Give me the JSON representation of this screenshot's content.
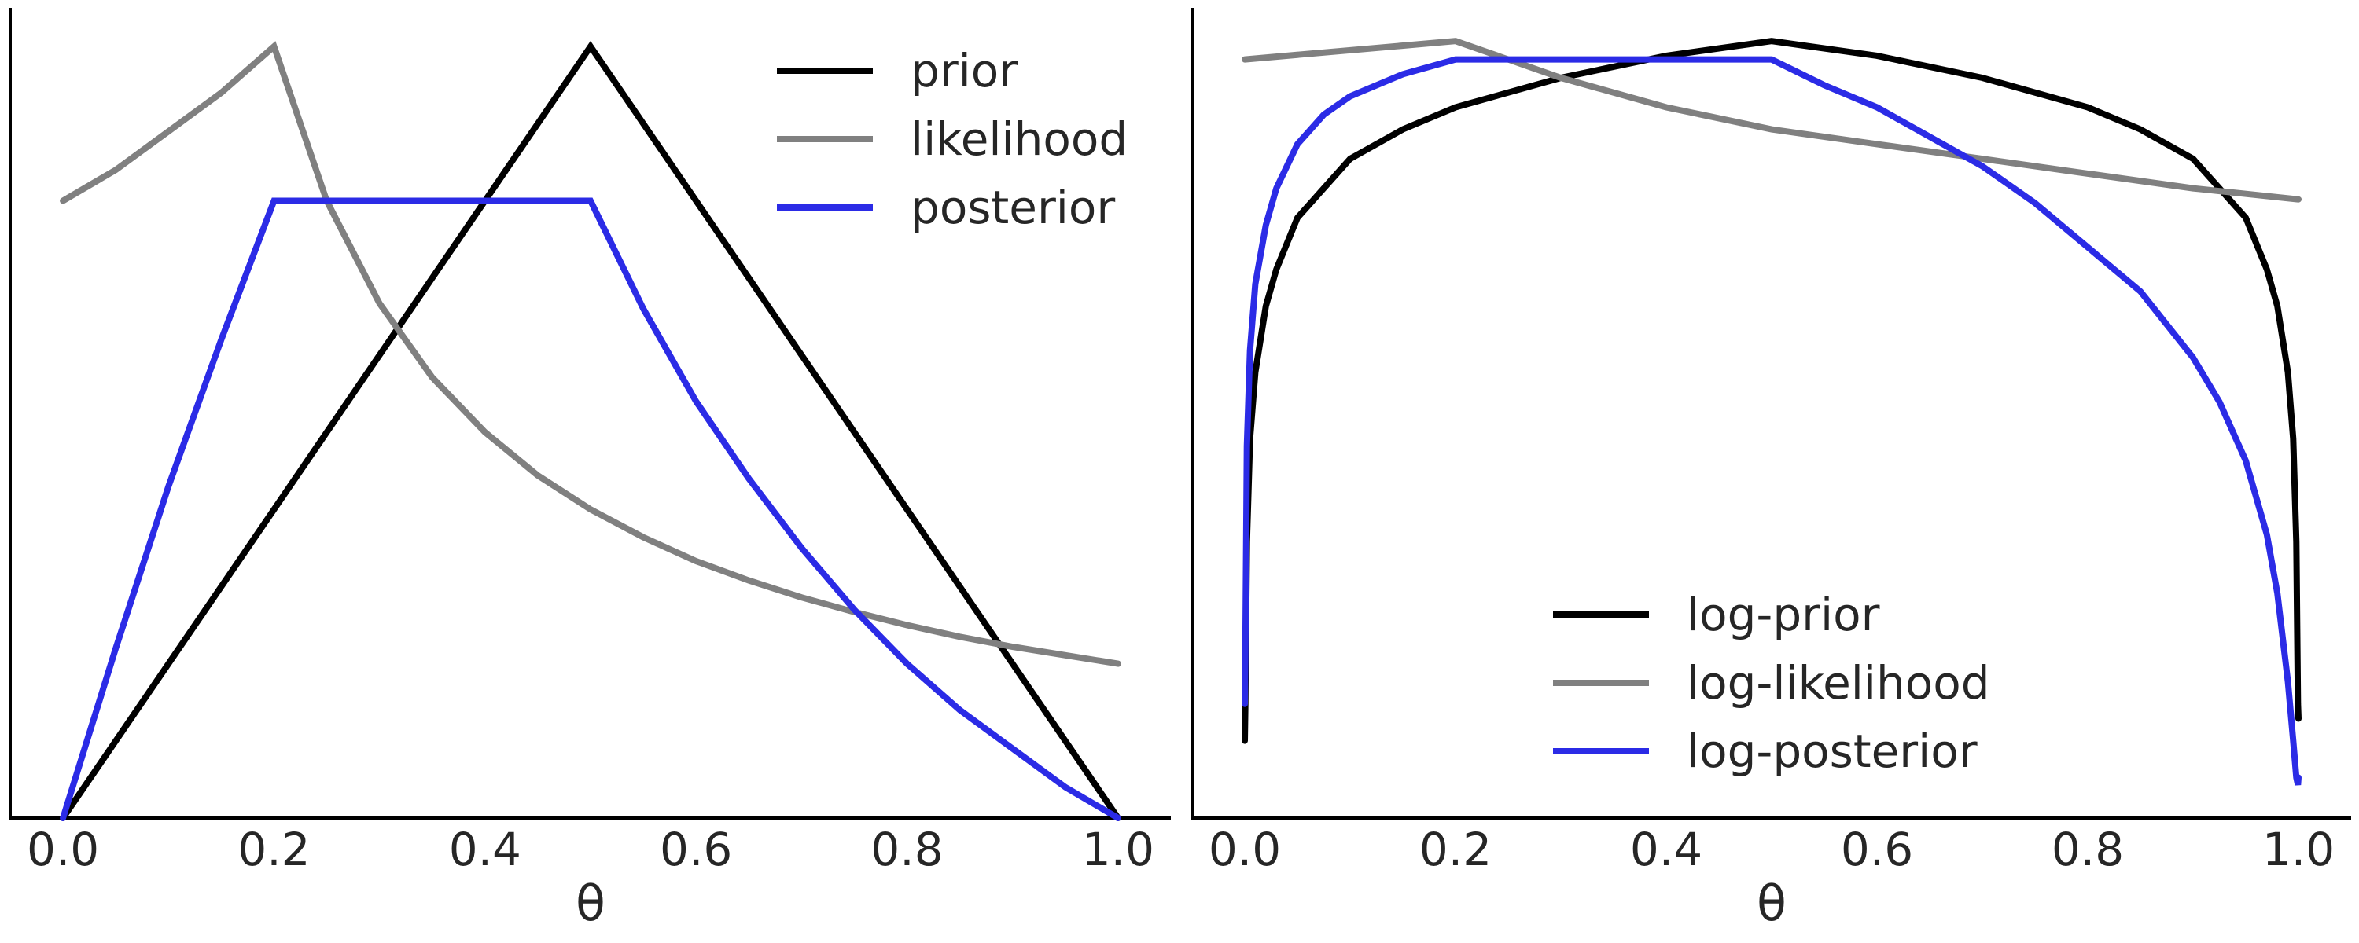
{
  "chart_data": [
    {
      "type": "line",
      "title": "",
      "xlabel": "θ",
      "ylabel": "",
      "xlim": [
        -0.05,
        1.05
      ],
      "ylim": [
        0.0,
        1.05
      ],
      "xticks": [
        "0.0",
        "0.2",
        "0.4",
        "0.6",
        "0.8",
        "1.0"
      ],
      "yticks": [],
      "grid": false,
      "legend_position": "top-right",
      "series": [
        {
          "name": "prior",
          "color": "#000000",
          "x": [
            0.0,
            0.5,
            1.0
          ],
          "y": [
            0.0,
            1.0,
            0.0
          ]
        },
        {
          "name": "likelihood",
          "color": "#808080",
          "x": [
            0.0,
            0.05,
            0.1,
            0.15,
            0.2,
            0.25,
            0.3,
            0.35,
            0.4,
            0.45,
            0.5,
            0.55,
            0.6,
            0.65,
            0.7,
            0.75,
            0.8,
            0.85,
            0.9,
            0.95,
            1.0
          ],
          "y": [
            0.8,
            0.84,
            0.89,
            0.94,
            1.0,
            0.8,
            0.667,
            0.571,
            0.5,
            0.444,
            0.4,
            0.364,
            0.333,
            0.308,
            0.286,
            0.267,
            0.25,
            0.235,
            0.222,
            0.211,
            0.2
          ]
        },
        {
          "name": "posterior",
          "color": "#2b2be6",
          "x": [
            0.0,
            0.05,
            0.1,
            0.15,
            0.2,
            0.5,
            0.55,
            0.6,
            0.65,
            0.7,
            0.75,
            0.8,
            0.85,
            0.9,
            0.95,
            1.0
          ],
          "y": [
            0.0,
            0.22,
            0.43,
            0.62,
            0.8,
            0.8,
            0.66,
            0.54,
            0.44,
            0.35,
            0.27,
            0.2,
            0.14,
            0.09,
            0.04,
            0.0
          ]
        }
      ]
    },
    {
      "type": "line",
      "title": "",
      "xlabel": "θ",
      "ylabel": "",
      "xlim": [
        -0.05,
        1.05
      ],
      "ylim": [
        -0.055,
        1.045
      ],
      "xticks": [
        "0.0",
        "0.2",
        "0.4",
        "0.6",
        "0.8",
        "1.0"
      ],
      "yticks": [],
      "grid": false,
      "legend_position": "bottom-center",
      "series": [
        {
          "name": "log-prior",
          "color": "#000000",
          "x": [
            0.0,
            0.0005,
            0.002,
            0.005,
            0.01,
            0.02,
            0.03,
            0.05,
            0.075,
            0.1,
            0.15,
            0.2,
            0.3,
            0.4,
            0.5,
            0.6,
            0.7,
            0.8,
            0.85,
            0.9,
            0.925,
            0.95,
            0.97,
            0.98,
            0.99,
            0.995,
            0.998,
            0.9995,
            1.0
          ],
          "y": [
            0.05,
            0.1,
            0.32,
            0.46,
            0.55,
            0.64,
            0.69,
            0.76,
            0.8,
            0.84,
            0.88,
            0.91,
            0.95,
            0.98,
            1.0,
            0.98,
            0.95,
            0.91,
            0.88,
            0.84,
            0.8,
            0.76,
            0.69,
            0.64,
            0.55,
            0.46,
            0.32,
            0.1,
            0.08
          ]
        },
        {
          "name": "log-likelihood",
          "color": "#808080",
          "x": [
            0.0,
            0.2,
            0.3,
            0.4,
            0.5,
            0.6,
            0.7,
            0.8,
            0.9,
            1.0
          ],
          "y": [
            0.975,
            1.0,
            0.95,
            0.91,
            0.88,
            0.86,
            0.84,
            0.82,
            0.8,
            0.785
          ]
        },
        {
          "name": "log-posterior",
          "color": "#2b2be6",
          "x": [
            0.0,
            0.0005,
            0.002,
            0.005,
            0.01,
            0.02,
            0.03,
            0.05,
            0.075,
            0.1,
            0.15,
            0.2,
            0.5,
            0.55,
            0.6,
            0.65,
            0.7,
            0.75,
            0.8,
            0.85,
            0.9,
            0.925,
            0.95,
            0.97,
            0.98,
            0.99,
            0.995,
            0.998,
            0.9995,
            1.0
          ],
          "y": [
            0.1,
            0.16,
            0.45,
            0.58,
            0.67,
            0.75,
            0.8,
            0.86,
            0.9,
            0.925,
            0.955,
            0.975,
            0.975,
            0.94,
            0.91,
            0.87,
            0.83,
            0.78,
            0.72,
            0.66,
            0.57,
            0.51,
            0.43,
            0.33,
            0.25,
            0.13,
            0.05,
            0.0,
            -0.01,
            0.0
          ]
        }
      ]
    }
  ]
}
